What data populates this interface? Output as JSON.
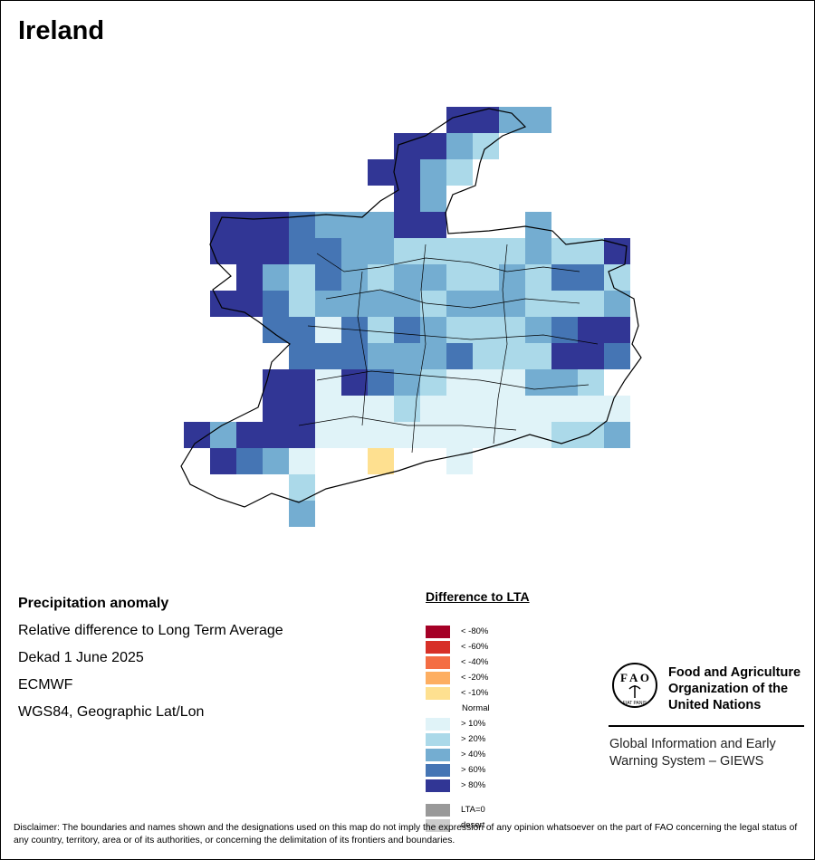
{
  "title": "Ireland",
  "info": {
    "heading": "Precipitation anomaly",
    "line1": "Relative difference to Long Term Average",
    "line2": "Dekad 1 June 2025",
    "line3": "ECMWF",
    "line4": "WGS84, Geographic Lat/Lon"
  },
  "legend": {
    "title": "Difference to LTA",
    "items": [
      {
        "label": "< -80%",
        "color": "#a50026"
      },
      {
        "label": "< -60%",
        "color": "#d73027"
      },
      {
        "label": "< -40%",
        "color": "#f46d43"
      },
      {
        "label": "< -20%",
        "color": "#fdae61"
      },
      {
        "label": "< -10%",
        "color": "#fee090"
      },
      {
        "label": "> 10%",
        "color": "#e0f3f8"
      },
      {
        "label": "> 20%",
        "color": "#abd9e9"
      },
      {
        "label": "> 40%",
        "color": "#74add1"
      },
      {
        "label": "> 60%",
        "color": "#4575b4"
      },
      {
        "label": "> 80%",
        "color": "#313695"
      },
      {
        "label": "LTA=0",
        "color": "#999999"
      },
      {
        "label": "desert",
        "color": "#cccccc"
      }
    ],
    "normal_label": "Normal"
  },
  "fao": {
    "logo_text": "FIAT PANIS",
    "name_line1": "Food and Agriculture",
    "name_line2": "Organization of the",
    "name_line3": "United Nations"
  },
  "giews": {
    "line1": "Global Information and Early",
    "line2": "Warning System – GIEWS"
  },
  "disclaimer": "Disclaimer: The boundaries and names shown and the designations used on this map do not imply the expression of any opinion whatsoever on the part of FAO concerning the legal status of any country, territory, area or of its authorities, or concerning the delimitation of its frontiers and boundaries."
}
